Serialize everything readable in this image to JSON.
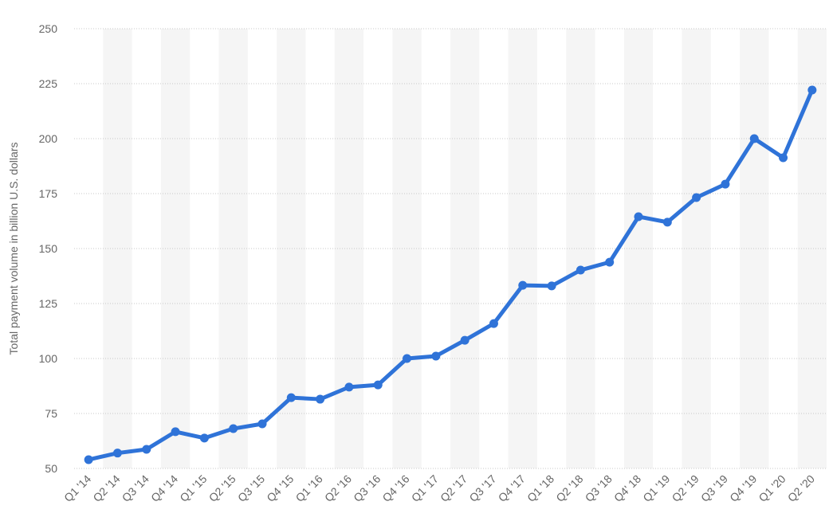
{
  "chart_data": {
    "type": "line",
    "y_label": "Total payment volume in billion U.S. dollars",
    "categories": [
      "Q1 '14",
      "Q2 '14",
      "Q3 '14",
      "Q4 '14",
      "Q1 '15",
      "Q2 '15",
      "Q3 '15",
      "Q4 '15",
      "Q1 '16",
      "Q2 '16",
      "Q3 '16",
      "Q4 '16",
      "Q1 '17",
      "Q2 '17",
      "Q3 '17",
      "Q4 '17",
      "Q1 '18",
      "Q2 '18",
      "Q3 '18",
      "Q4' 18",
      "Q1 '19",
      "Q2 '19",
      "Q3 '19",
      "Q4 '19",
      "Q1 '20",
      "Q2 '20"
    ],
    "values": [
      54,
      57,
      58.7,
      66.7,
      63.8,
      68.1,
      70.3,
      82.2,
      81.5,
      87,
      88,
      100,
      101.1,
      108.3,
      115.9,
      133.3,
      133,
      140.2,
      143.8,
      164.5,
      162,
      173.2,
      179.3,
      200,
      191.3,
      222.1
    ],
    "color": "#2f73d8",
    "ylim": [
      50,
      250
    ],
    "yticks": [
      50,
      75,
      100,
      125,
      150,
      175,
      200,
      225,
      250
    ],
    "grid": true
  }
}
